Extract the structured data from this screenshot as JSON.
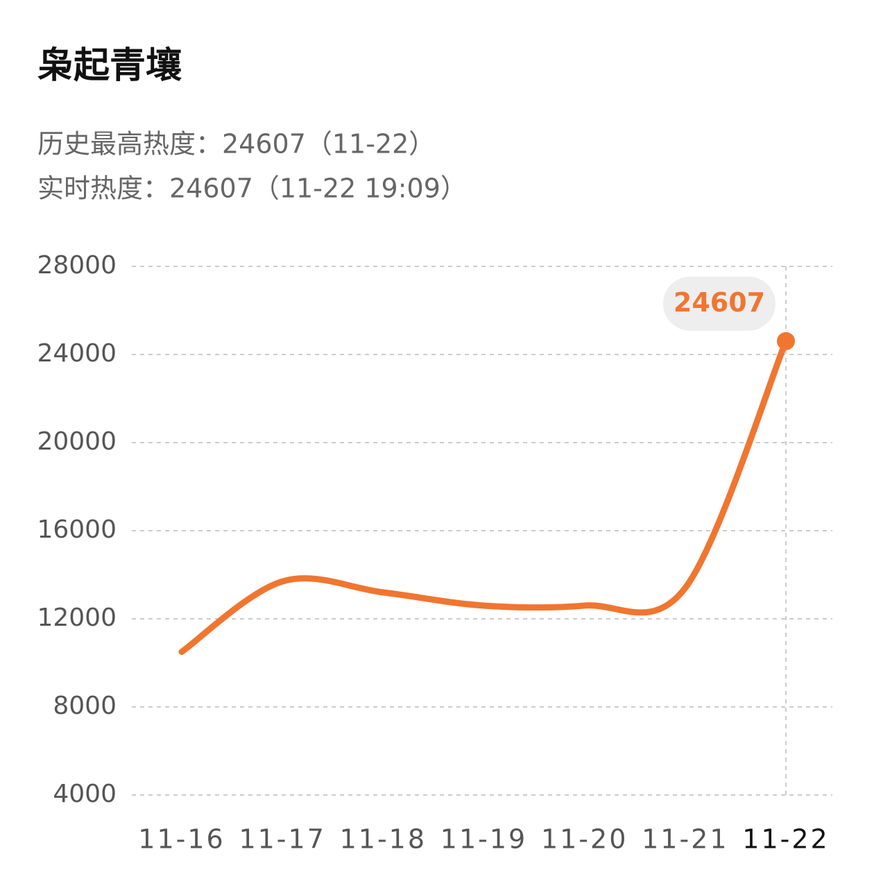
{
  "chart_data": {
    "type": "line",
    "title": "枭起青壤",
    "subtitle": [
      "历史最高热度：24607（11-22）",
      "实时热度：24607（11-22 19:09）"
    ],
    "categories": [
      "11-16",
      "11-17",
      "11-18",
      "11-19",
      "11-20",
      "11-21",
      "11-22"
    ],
    "series": [
      {
        "name": "热度",
        "color": "#f07630",
        "values": [
          10500,
          13700,
          13200,
          12600,
          12600,
          13400,
          24607
        ]
      }
    ],
    "ylim": [
      4000,
      28000
    ],
    "yticks": [
      4000,
      8000,
      12000,
      16000,
      20000,
      24000,
      28000
    ],
    "grid": true
  }
}
